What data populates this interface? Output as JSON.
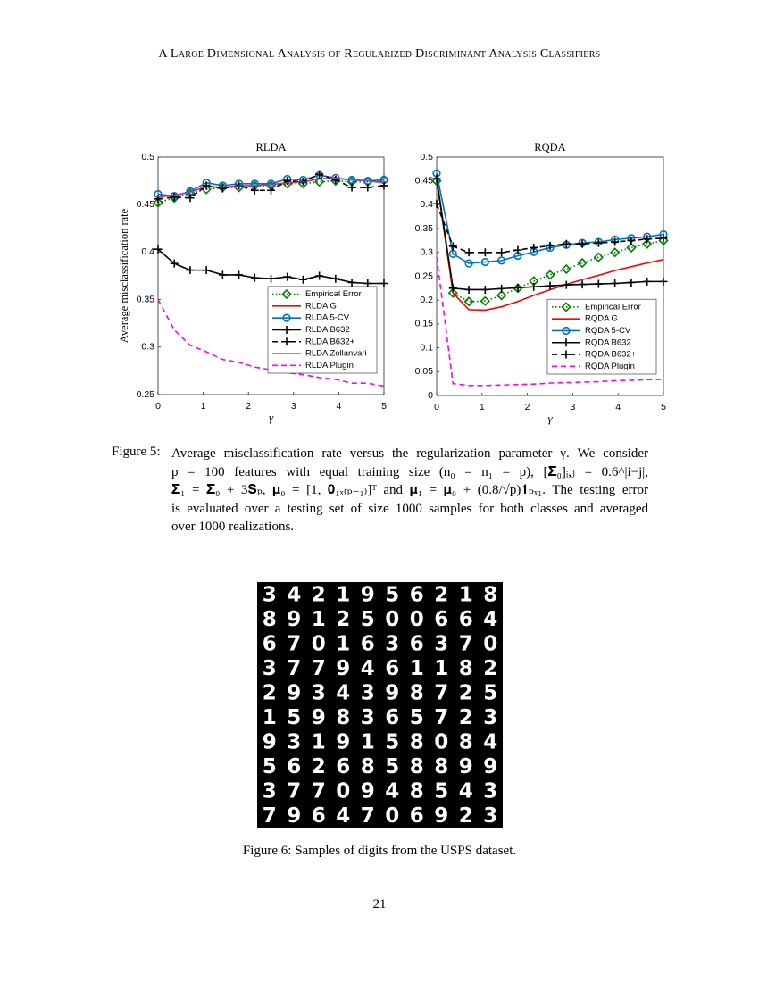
{
  "header": {
    "title": "A Large Dimensional Analysis of Regularized Discriminant Analysis Classifiers"
  },
  "chart_data": [
    {
      "type": "line",
      "title": "RLDA",
      "xlabel": "γ",
      "ylabel": "Average misclassification rate",
      "x": [
        0,
        0.36,
        0.71,
        1.07,
        1.43,
        1.79,
        2.14,
        2.5,
        2.86,
        3.21,
        3.57,
        3.93,
        4.29,
        4.64,
        5
      ],
      "xlim": [
        0,
        5
      ],
      "xticks": [
        0,
        1,
        2,
        3,
        4,
        5
      ],
      "ylim": [
        0.25,
        0.5
      ],
      "yticks": [
        0.25,
        0.3,
        0.35,
        0.4,
        0.45,
        0.5
      ],
      "legend": "southeast",
      "series": [
        {
          "name": "Empirical Error",
          "color": "#008000",
          "dash": "dotted",
          "marker": "diamond",
          "values": [
            0.452,
            0.457,
            0.462,
            0.466,
            0.468,
            0.468,
            0.47,
            0.47,
            0.472,
            0.472,
            0.474,
            0.475,
            0.474,
            0.474,
            0.476
          ]
        },
        {
          "name": "RLDA G",
          "color": "#ff0000",
          "dash": "solid",
          "marker": "none",
          "values": [
            0.458,
            0.46,
            0.463,
            0.469,
            0.468,
            0.47,
            0.47,
            0.471,
            0.473,
            0.474,
            0.477,
            0.478,
            0.476,
            0.475,
            0.473
          ]
        },
        {
          "name": "RLDA 5-CV",
          "color": "#0072bd",
          "dash": "solid",
          "marker": "circle",
          "values": [
            0.461,
            0.459,
            0.464,
            0.473,
            0.47,
            0.472,
            0.472,
            0.472,
            0.477,
            0.476,
            0.481,
            0.478,
            0.476,
            0.475,
            0.476
          ]
        },
        {
          "name": "RLDA B632",
          "color": "#000000",
          "dash": "solid",
          "marker": "plus",
          "values": [
            0.403,
            0.388,
            0.381,
            0.381,
            0.376,
            0.376,
            0.373,
            0.372,
            0.374,
            0.371,
            0.375,
            0.372,
            0.368,
            0.367,
            0.367
          ]
        },
        {
          "name": "RLDA B632+",
          "color": "#000000",
          "dash": "dashed",
          "marker": "plus",
          "values": [
            0.456,
            0.458,
            0.457,
            0.47,
            0.467,
            0.47,
            0.465,
            0.465,
            0.475,
            0.474,
            0.482,
            0.476,
            0.468,
            0.468,
            0.47
          ]
        },
        {
          "name": "RLDA Zollanvari",
          "color": "#bf40bf",
          "dash": "solid",
          "marker": "none",
          "values": [
            0.458,
            0.46,
            0.463,
            0.469,
            0.468,
            0.47,
            0.47,
            0.471,
            0.473,
            0.474,
            0.477,
            0.478,
            0.476,
            0.475,
            0.473
          ]
        },
        {
          "name": "RLDA Plugin",
          "color": "#ff00ff",
          "dash": "dashed",
          "marker": "none",
          "values": [
            0.35,
            0.318,
            0.302,
            0.295,
            0.287,
            0.284,
            0.279,
            0.276,
            0.273,
            0.271,
            0.268,
            0.266,
            0.262,
            0.262,
            0.259
          ]
        }
      ]
    },
    {
      "type": "line",
      "title": "RQDA",
      "xlabel": "γ",
      "x": [
        0,
        0.36,
        0.71,
        1.07,
        1.43,
        1.79,
        2.14,
        2.5,
        2.86,
        3.21,
        3.57,
        3.93,
        4.29,
        4.64,
        5
      ],
      "xlim": [
        0,
        5
      ],
      "xticks": [
        0,
        1,
        2,
        3,
        4,
        5
      ],
      "ylim": [
        0,
        0.5
      ],
      "yticks": [
        0,
        0.05,
        0.1,
        0.15,
        0.2,
        0.25,
        0.3,
        0.35,
        0.4,
        0.45,
        0.5
      ],
      "legend": "southeast",
      "series": [
        {
          "name": "Empirical Error",
          "color": "#008000",
          "dash": "dotted",
          "marker": "diamond",
          "values": [
            0.45,
            0.215,
            0.197,
            0.198,
            0.21,
            0.225,
            0.24,
            0.253,
            0.265,
            0.278,
            0.29,
            0.3,
            0.31,
            0.318,
            0.325
          ]
        },
        {
          "name": "RQDA G",
          "color": "#ff0000",
          "dash": "solid",
          "marker": "none",
          "values": [
            0.455,
            0.215,
            0.18,
            0.179,
            0.186,
            0.197,
            0.21,
            0.222,
            0.233,
            0.243,
            0.252,
            0.262,
            0.27,
            0.278,
            0.285
          ]
        },
        {
          "name": "RQDA 5-CV",
          "color": "#0072bd",
          "dash": "solid",
          "marker": "circle",
          "values": [
            0.466,
            0.297,
            0.277,
            0.28,
            0.283,
            0.293,
            0.301,
            0.31,
            0.316,
            0.32,
            0.322,
            0.327,
            0.33,
            0.333,
            0.338
          ]
        },
        {
          "name": "RQDA B632",
          "color": "#000000",
          "dash": "solid",
          "marker": "plus",
          "values": [
            0.455,
            0.225,
            0.222,
            0.222,
            0.224,
            0.226,
            0.228,
            0.23,
            0.232,
            0.233,
            0.234,
            0.235,
            0.237,
            0.239,
            0.239
          ]
        },
        {
          "name": "RQDA B632+",
          "color": "#000000",
          "dash": "dashed",
          "marker": "plus",
          "values": [
            0.402,
            0.313,
            0.3,
            0.3,
            0.3,
            0.305,
            0.31,
            0.314,
            0.318,
            0.318,
            0.32,
            0.322,
            0.325,
            0.328,
            0.33
          ]
        },
        {
          "name": "RQDA Plugin",
          "color": "#ff00ff",
          "dash": "dashed",
          "marker": "none",
          "values": [
            0.29,
            0.025,
            0.021,
            0.021,
            0.022,
            0.023,
            0.024,
            0.026,
            0.027,
            0.028,
            0.029,
            0.031,
            0.032,
            0.033,
            0.034
          ]
        }
      ]
    }
  ],
  "figure5": {
    "label": "Figure 5:",
    "lines": [
      "Average misclassification rate versus the regularization parameter γ. We consider",
      "p = 100 features with equal training size (n₀ = n₁ = p), [𝚺₀]ᵢ,ⱼ = 0.6^|i−j|,",
      "𝚺₁ = 𝚺₀ + 3𝐒ₚ, 𝛍₀ = [1, 𝟎₁ₓ₍ₚ₋₁₎]ᵀ and 𝛍₁ = 𝛍₀ + (0.8/√p)𝟏ₚₓ₁. The testing error",
      "is evaluated over a testing set of size 1000 samples for both classes and averaged",
      "over 1000 realizations."
    ]
  },
  "digits": {
    "rows": [
      [
        "3",
        "4",
        "2",
        "1",
        "9",
        "5",
        "6",
        "2",
        "1",
        "8"
      ],
      [
        "8",
        "9",
        "1",
        "2",
        "5",
        "0",
        "0",
        "6",
        "6",
        "4"
      ],
      [
        "6",
        "7",
        "0",
        "1",
        "6",
        "3",
        "6",
        "3",
        "7",
        "0"
      ],
      [
        "3",
        "7",
        "7",
        "9",
        "4",
        "6",
        "1",
        "1",
        "8",
        "2"
      ],
      [
        "2",
        "9",
        "3",
        "4",
        "3",
        "9",
        "8",
        "7",
        "2",
        "5"
      ],
      [
        "1",
        "5",
        "9",
        "8",
        "3",
        "6",
        "5",
        "7",
        "2",
        "3"
      ],
      [
        "9",
        "3",
        "1",
        "9",
        "1",
        "5",
        "8",
        "0",
        "8",
        "4"
      ],
      [
        "5",
        "6",
        "2",
        "6",
        "8",
        "5",
        "8",
        "8",
        "9",
        "9"
      ],
      [
        "3",
        "7",
        "7",
        "0",
        "9",
        "4",
        "8",
        "5",
        "4",
        "3"
      ],
      [
        "7",
        "9",
        "6",
        "4",
        "7",
        "0",
        "6",
        "9",
        "2",
        "3"
      ]
    ]
  },
  "figure6": {
    "caption": "Figure 6: Samples of digits from the USPS dataset."
  },
  "page_number": "21"
}
